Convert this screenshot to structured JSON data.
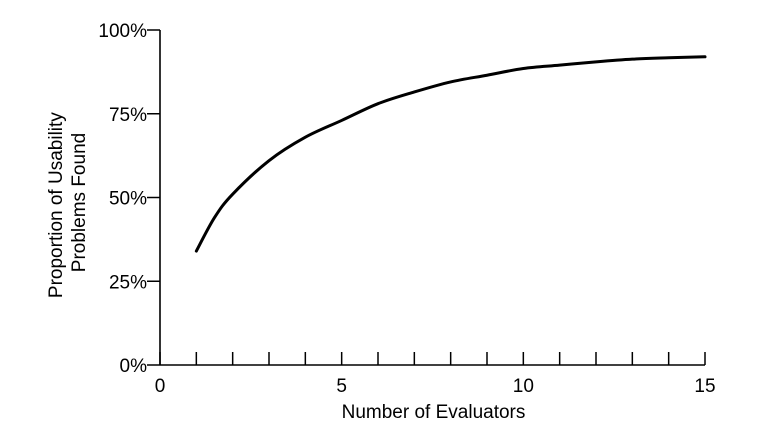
{
  "chart_data": {
    "type": "line",
    "xlabel": "Number of Evaluators",
    "ylabel": [
      "Proportion of Usability",
      "Problems Found"
    ],
    "xlim": [
      0,
      15
    ],
    "ylim": [
      0,
      100
    ],
    "x_ticks": [
      {
        "value": 0,
        "label": "0"
      },
      {
        "value": 5,
        "label": "5"
      },
      {
        "value": 10,
        "label": "10"
      },
      {
        "value": 15,
        "label": "15"
      }
    ],
    "x_minor_ticks": [
      1,
      2,
      3,
      4,
      6,
      7,
      8,
      9,
      11,
      12,
      13,
      14
    ],
    "y_ticks": [
      {
        "value": 0,
        "label": "0%"
      },
      {
        "value": 25,
        "label": "25%"
      },
      {
        "value": 50,
        "label": "50%"
      },
      {
        "value": 75,
        "label": "75%"
      },
      {
        "value": 100,
        "label": "100%"
      }
    ],
    "grid": false,
    "series": [
      {
        "color": "#000000",
        "x": [
          1,
          1.5,
          2,
          3,
          4,
          5,
          6,
          7,
          8,
          9,
          10,
          11,
          12,
          13,
          14,
          15
        ],
        "y": [
          34,
          44,
          51,
          61,
          68,
          73,
          78,
          81.5,
          84.5,
          86.5,
          88.5,
          89.5,
          90.5,
          91.3,
          91.7,
          92
        ]
      }
    ]
  }
}
